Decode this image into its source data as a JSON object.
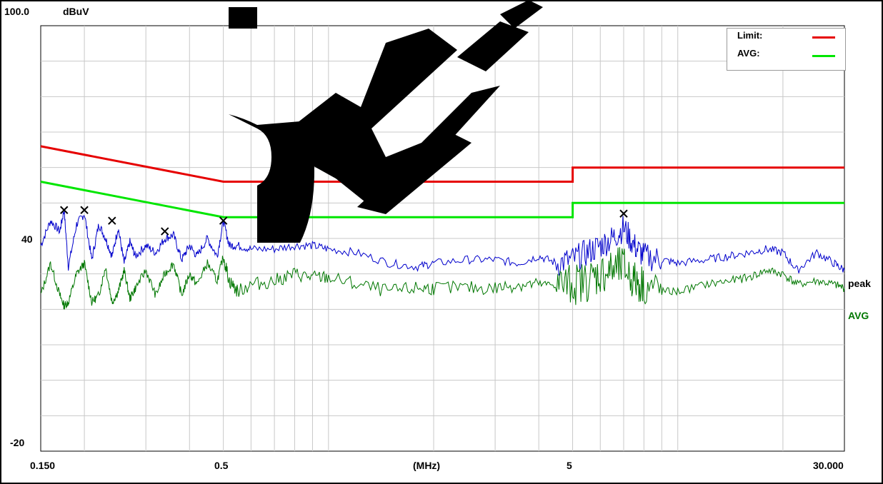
{
  "chart_data": {
    "type": "line",
    "x_scale": "log",
    "y_scale": "linear",
    "ylim": [
      -20,
      100
    ],
    "xlim": [
      0.15,
      30
    ],
    "y_top_label": "100.0",
    "y_unit": "dBuV",
    "y_mid_label": "40",
    "y_bottom_label": "-20",
    "x_tick_labels": [
      {
        "value": 0.15,
        "label": "0.150"
      },
      {
        "value": 0.5,
        "label": "0.5"
      },
      {
        "value": 5,
        "label": "5"
      },
      {
        "value": 30,
        "label": "30.000"
      }
    ],
    "x_unit_label": "(MHz)",
    "grid": true,
    "legend": {
      "placement": "top-right",
      "entries": [
        {
          "label": "Limit:",
          "color": "#e60000"
        },
        {
          "label": "AVG:",
          "color": "#00e600"
        }
      ]
    },
    "trace_labels": {
      "peak": "peak",
      "avg": "AVG"
    },
    "series": [
      {
        "id": "limit",
        "color": "#e60000",
        "points": [
          [
            0.15,
            66
          ],
          [
            0.5,
            56
          ],
          [
            5,
            56
          ],
          [
            5,
            60
          ],
          [
            30,
            60
          ]
        ]
      },
      {
        "id": "avg_limit",
        "color": "#00e600",
        "points": [
          [
            0.15,
            56
          ],
          [
            0.5,
            46
          ],
          [
            5,
            46
          ],
          [
            5,
            50
          ],
          [
            30,
            50
          ]
        ]
      },
      {
        "id": "peak",
        "color": "#0000cc",
        "points": [
          [
            0.15,
            38
          ],
          [
            0.16,
            45
          ],
          [
            0.17,
            42
          ],
          [
            0.175,
            48
          ],
          [
            0.18,
            32
          ],
          [
            0.19,
            44
          ],
          [
            0.2,
            47
          ],
          [
            0.21,
            34
          ],
          [
            0.22,
            44
          ],
          [
            0.23,
            40
          ],
          [
            0.24,
            35
          ],
          [
            0.25,
            43
          ],
          [
            0.26,
            33
          ],
          [
            0.27,
            39
          ],
          [
            0.28,
            35
          ],
          [
            0.3,
            38
          ],
          [
            0.32,
            36
          ],
          [
            0.34,
            40
          ],
          [
            0.36,
            41
          ],
          [
            0.38,
            34
          ],
          [
            0.4,
            38
          ],
          [
            0.42,
            35
          ],
          [
            0.45,
            40
          ],
          [
            0.48,
            35
          ],
          [
            0.5,
            45
          ],
          [
            0.52,
            38
          ],
          [
            0.55,
            38
          ],
          [
            0.6,
            37
          ],
          [
            0.7,
            37
          ],
          [
            0.8,
            38
          ],
          [
            0.9,
            38
          ],
          [
            1.0,
            37
          ],
          [
            1.2,
            36
          ],
          [
            1.5,
            33
          ],
          [
            1.8,
            32
          ],
          [
            2.0,
            33
          ],
          [
            2.5,
            34
          ],
          [
            3.0,
            34
          ],
          [
            3.5,
            33
          ],
          [
            4.0,
            35
          ],
          [
            4.5,
            33
          ],
          [
            5.0,
            34
          ],
          [
            5.5,
            36
          ],
          [
            6.0,
            38
          ],
          [
            6.5,
            40
          ],
          [
            7.0,
            43
          ],
          [
            7.5,
            38
          ],
          [
            8.0,
            35
          ],
          [
            9.0,
            34
          ],
          [
            10,
            33
          ],
          [
            12,
            34
          ],
          [
            14,
            35
          ],
          [
            16,
            36
          ],
          [
            18,
            37
          ],
          [
            20,
            36
          ],
          [
            22,
            31
          ],
          [
            25,
            36
          ],
          [
            28,
            33
          ],
          [
            30,
            31
          ]
        ]
      },
      {
        "id": "avg",
        "color": "#007700",
        "points": [
          [
            0.15,
            24
          ],
          [
            0.16,
            33
          ],
          [
            0.17,
            24
          ],
          [
            0.175,
            21
          ],
          [
            0.18,
            22
          ],
          [
            0.19,
            30
          ],
          [
            0.2,
            33
          ],
          [
            0.21,
            22
          ],
          [
            0.22,
            24
          ],
          [
            0.23,
            32
          ],
          [
            0.24,
            22
          ],
          [
            0.25,
            25
          ],
          [
            0.26,
            31
          ],
          [
            0.27,
            23
          ],
          [
            0.28,
            26
          ],
          [
            0.3,
            31
          ],
          [
            0.32,
            24
          ],
          [
            0.34,
            30
          ],
          [
            0.36,
            33
          ],
          [
            0.38,
            24
          ],
          [
            0.4,
            30
          ],
          [
            0.42,
            27
          ],
          [
            0.45,
            33
          ],
          [
            0.48,
            28
          ],
          [
            0.5,
            35
          ],
          [
            0.52,
            28
          ],
          [
            0.55,
            25
          ],
          [
            0.6,
            27
          ],
          [
            0.7,
            28
          ],
          [
            0.8,
            30
          ],
          [
            0.9,
            29
          ],
          [
            1.0,
            29
          ],
          [
            1.2,
            27
          ],
          [
            1.5,
            25
          ],
          [
            1.8,
            26
          ],
          [
            2.0,
            26
          ],
          [
            2.5,
            26
          ],
          [
            3.0,
            26
          ],
          [
            3.5,
            27
          ],
          [
            4.0,
            27
          ],
          [
            4.5,
            27
          ],
          [
            5.0,
            27
          ],
          [
            5.5,
            28
          ],
          [
            6.0,
            30
          ],
          [
            6.5,
            31
          ],
          [
            7.0,
            32
          ],
          [
            7.5,
            28
          ],
          [
            8.0,
            27
          ],
          [
            9.0,
            25
          ],
          [
            10,
            25
          ],
          [
            12,
            27
          ],
          [
            14,
            28
          ],
          [
            16,
            29
          ],
          [
            18,
            31
          ],
          [
            20,
            30
          ],
          [
            22,
            27
          ],
          [
            25,
            28
          ],
          [
            28,
            27
          ],
          [
            30,
            26
          ]
        ]
      }
    ],
    "markers": [
      {
        "x": 0.175,
        "y": 48
      },
      {
        "x": 0.2,
        "y": 48
      },
      {
        "x": 0.24,
        "y": 45
      },
      {
        "x": 0.34,
        "y": 42
      },
      {
        "x": 0.5,
        "y": 45
      },
      {
        "x": 7.0,
        "y": 47
      }
    ]
  }
}
